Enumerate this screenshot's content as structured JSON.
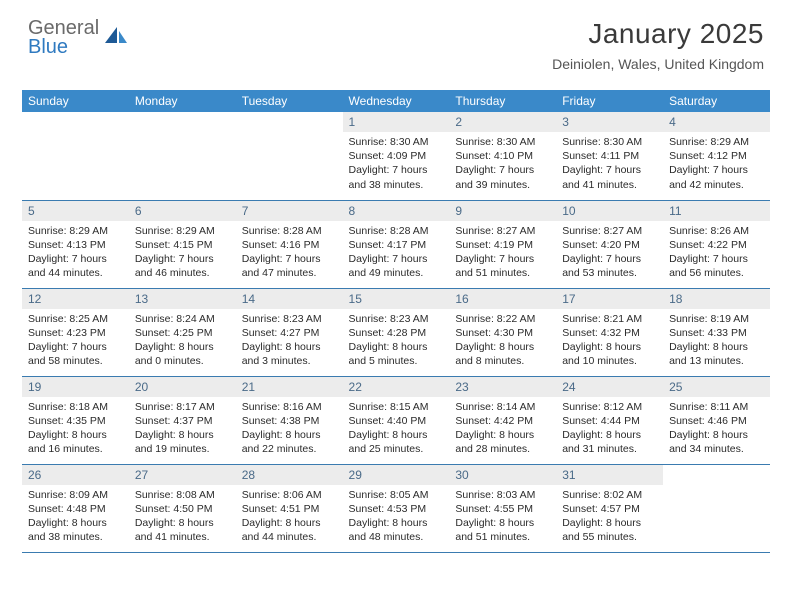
{
  "brand": {
    "line1": "General",
    "line2": "Blue"
  },
  "title": "January 2025",
  "location": "Deiniolen, Wales, United Kingdom",
  "colors": {
    "header_bg": "#3a89c9",
    "header_text": "#ffffff",
    "daynum_bg": "#ececec",
    "daynum_text": "#4a6a88",
    "body_text": "#2b2b2b",
    "rule": "#3a7bb0",
    "logo_gray": "#6a6a6a",
    "logo_blue": "#2f7ac0"
  },
  "day_headers": [
    "Sunday",
    "Monday",
    "Tuesday",
    "Wednesday",
    "Thursday",
    "Friday",
    "Saturday"
  ],
  "weeks": [
    [
      {
        "n": "",
        "sr": "",
        "ss": "",
        "dl": ""
      },
      {
        "n": "",
        "sr": "",
        "ss": "",
        "dl": ""
      },
      {
        "n": "",
        "sr": "",
        "ss": "",
        "dl": ""
      },
      {
        "n": "1",
        "sr": "8:30 AM",
        "ss": "4:09 PM",
        "dl": "7 hours and 38 minutes."
      },
      {
        "n": "2",
        "sr": "8:30 AM",
        "ss": "4:10 PM",
        "dl": "7 hours and 39 minutes."
      },
      {
        "n": "3",
        "sr": "8:30 AM",
        "ss": "4:11 PM",
        "dl": "7 hours and 41 minutes."
      },
      {
        "n": "4",
        "sr": "8:29 AM",
        "ss": "4:12 PM",
        "dl": "7 hours and 42 minutes."
      }
    ],
    [
      {
        "n": "5",
        "sr": "8:29 AM",
        "ss": "4:13 PM",
        "dl": "7 hours and 44 minutes."
      },
      {
        "n": "6",
        "sr": "8:29 AM",
        "ss": "4:15 PM",
        "dl": "7 hours and 46 minutes."
      },
      {
        "n": "7",
        "sr": "8:28 AM",
        "ss": "4:16 PM",
        "dl": "7 hours and 47 minutes."
      },
      {
        "n": "8",
        "sr": "8:28 AM",
        "ss": "4:17 PM",
        "dl": "7 hours and 49 minutes."
      },
      {
        "n": "9",
        "sr": "8:27 AM",
        "ss": "4:19 PM",
        "dl": "7 hours and 51 minutes."
      },
      {
        "n": "10",
        "sr": "8:27 AM",
        "ss": "4:20 PM",
        "dl": "7 hours and 53 minutes."
      },
      {
        "n": "11",
        "sr": "8:26 AM",
        "ss": "4:22 PM",
        "dl": "7 hours and 56 minutes."
      }
    ],
    [
      {
        "n": "12",
        "sr": "8:25 AM",
        "ss": "4:23 PM",
        "dl": "7 hours and 58 minutes."
      },
      {
        "n": "13",
        "sr": "8:24 AM",
        "ss": "4:25 PM",
        "dl": "8 hours and 0 minutes."
      },
      {
        "n": "14",
        "sr": "8:23 AM",
        "ss": "4:27 PM",
        "dl": "8 hours and 3 minutes."
      },
      {
        "n": "15",
        "sr": "8:23 AM",
        "ss": "4:28 PM",
        "dl": "8 hours and 5 minutes."
      },
      {
        "n": "16",
        "sr": "8:22 AM",
        "ss": "4:30 PM",
        "dl": "8 hours and 8 minutes."
      },
      {
        "n": "17",
        "sr": "8:21 AM",
        "ss": "4:32 PM",
        "dl": "8 hours and 10 minutes."
      },
      {
        "n": "18",
        "sr": "8:19 AM",
        "ss": "4:33 PM",
        "dl": "8 hours and 13 minutes."
      }
    ],
    [
      {
        "n": "19",
        "sr": "8:18 AM",
        "ss": "4:35 PM",
        "dl": "8 hours and 16 minutes."
      },
      {
        "n": "20",
        "sr": "8:17 AM",
        "ss": "4:37 PM",
        "dl": "8 hours and 19 minutes."
      },
      {
        "n": "21",
        "sr": "8:16 AM",
        "ss": "4:38 PM",
        "dl": "8 hours and 22 minutes."
      },
      {
        "n": "22",
        "sr": "8:15 AM",
        "ss": "4:40 PM",
        "dl": "8 hours and 25 minutes."
      },
      {
        "n": "23",
        "sr": "8:14 AM",
        "ss": "4:42 PM",
        "dl": "8 hours and 28 minutes."
      },
      {
        "n": "24",
        "sr": "8:12 AM",
        "ss": "4:44 PM",
        "dl": "8 hours and 31 minutes."
      },
      {
        "n": "25",
        "sr": "8:11 AM",
        "ss": "4:46 PM",
        "dl": "8 hours and 34 minutes."
      }
    ],
    [
      {
        "n": "26",
        "sr": "8:09 AM",
        "ss": "4:48 PM",
        "dl": "8 hours and 38 minutes."
      },
      {
        "n": "27",
        "sr": "8:08 AM",
        "ss": "4:50 PM",
        "dl": "8 hours and 41 minutes."
      },
      {
        "n": "28",
        "sr": "8:06 AM",
        "ss": "4:51 PM",
        "dl": "8 hours and 44 minutes."
      },
      {
        "n": "29",
        "sr": "8:05 AM",
        "ss": "4:53 PM",
        "dl": "8 hours and 48 minutes."
      },
      {
        "n": "30",
        "sr": "8:03 AM",
        "ss": "4:55 PM",
        "dl": "8 hours and 51 minutes."
      },
      {
        "n": "31",
        "sr": "8:02 AM",
        "ss": "4:57 PM",
        "dl": "8 hours and 55 minutes."
      },
      {
        "n": "",
        "sr": "",
        "ss": "",
        "dl": ""
      }
    ]
  ],
  "labels": {
    "sunrise": "Sunrise:",
    "sunset": "Sunset:",
    "daylight": "Daylight:"
  }
}
